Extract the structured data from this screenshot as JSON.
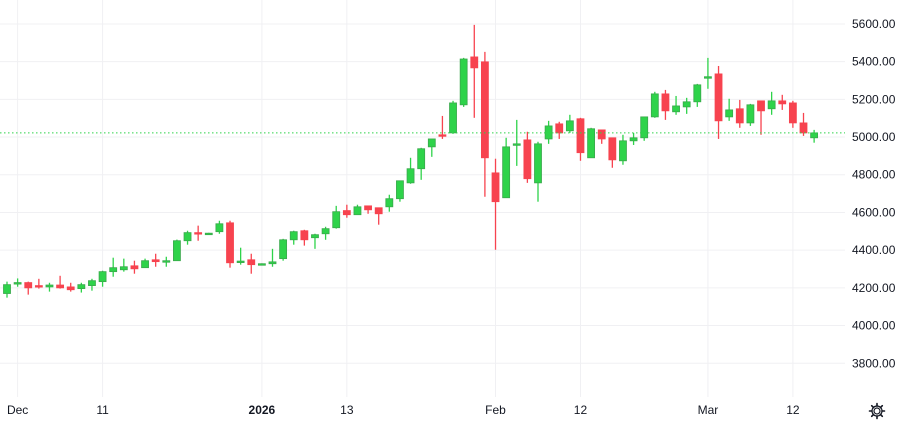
{
  "colors": {
    "up": "#2ed34a",
    "up_border": "#3aa84c",
    "down": "#f7434f",
    "grid": "#f0f0f3",
    "last_price_line": "#2ed34a",
    "text": "#131722"
  },
  "settings_icon": "gear-icon",
  "chart_data": {
    "type": "candlestick",
    "title": "",
    "xlabel": "",
    "ylabel": "",
    "ylim": [
      3621,
      5727
    ],
    "grid": true,
    "y_ticks": [
      "3800.00",
      "4000.00",
      "4200.00",
      "4400.00",
      "4600.00",
      "4800.00",
      "5000.00",
      "5200.00",
      "5400.00",
      "5600.00"
    ],
    "y_tick_values": [
      3800,
      4000,
      4200,
      4400,
      4600,
      4800,
      5000,
      5200,
      5400,
      5600
    ],
    "x_ticks": [
      {
        "label": "Dec",
        "index": 1,
        "bold": false
      },
      {
        "label": "11",
        "index": 9,
        "bold": false
      },
      {
        "label": "2026",
        "index": 24,
        "bold": true
      },
      {
        "label": "13",
        "index": 32,
        "bold": false
      },
      {
        "label": "Feb",
        "index": 46,
        "bold": false
      },
      {
        "label": "12",
        "index": 54,
        "bold": false
      },
      {
        "label": "Mar",
        "index": 66,
        "bold": false
      },
      {
        "label": "12",
        "index": 74,
        "bold": false
      }
    ],
    "last_price": 5022,
    "ohlc": [
      [
        4170,
        4233,
        4148,
        4217
      ],
      [
        4225,
        4250,
        4206,
        4228
      ],
      [
        4228,
        4233,
        4164,
        4200
      ],
      [
        4212,
        4248,
        4196,
        4210
      ],
      [
        4205,
        4227,
        4180,
        4215
      ],
      [
        4215,
        4264,
        4196,
        4200
      ],
      [
        4205,
        4227,
        4180,
        4190
      ],
      [
        4196,
        4227,
        4175,
        4217
      ],
      [
        4212,
        4248,
        4185,
        4238
      ],
      [
        4233,
        4291,
        4206,
        4286
      ],
      [
        4286,
        4360,
        4259,
        4307
      ],
      [
        4296,
        4355,
        4286,
        4312
      ],
      [
        4317,
        4344,
        4275,
        4301
      ],
      [
        4307,
        4355,
        4307,
        4344
      ],
      [
        4349,
        4381,
        4312,
        4339
      ],
      [
        4339,
        4365,
        4312,
        4344
      ],
      [
        4344,
        4456,
        4344,
        4450
      ],
      [
        4450,
        4503,
        4429,
        4493
      ],
      [
        4493,
        4530,
        4450,
        4487
      ],
      [
        4487,
        4492,
        4485,
        4490
      ],
      [
        4498,
        4556,
        4487,
        4540
      ],
      [
        4545,
        4556,
        4307,
        4333
      ],
      [
        4338,
        4413,
        4323,
        4342
      ],
      [
        4349,
        4381,
        4275,
        4323
      ],
      [
        4328,
        4330,
        4326,
        4328
      ],
      [
        4328,
        4407,
        4312,
        4338
      ],
      [
        4355,
        4460,
        4344,
        4455
      ],
      [
        4455,
        4503,
        4429,
        4498
      ],
      [
        4503,
        4508,
        4424,
        4455
      ],
      [
        4466,
        4487,
        4407,
        4482
      ],
      [
        4487,
        4524,
        4455,
        4514
      ],
      [
        4519,
        4635,
        4514,
        4604
      ],
      [
        4610,
        4641,
        4572,
        4588
      ],
      [
        4588,
        4641,
        4588,
        4630
      ],
      [
        4635,
        4635,
        4593,
        4614
      ],
      [
        4625,
        4625,
        4535,
        4593
      ],
      [
        4630,
        4694,
        4604,
        4673
      ],
      [
        4673,
        4768,
        4657,
        4768
      ],
      [
        4757,
        4890,
        4752,
        4832
      ],
      [
        4832,
        4943,
        4773,
        4938
      ],
      [
        4948,
        4990,
        4895,
        4990
      ],
      [
        5012,
        5112,
        4990,
        5006
      ],
      [
        5022,
        5192,
        5017,
        5181
      ],
      [
        5171,
        5420,
        5160,
        5414
      ],
      [
        5425,
        5595,
        5102,
        5367
      ],
      [
        5399,
        5452,
        4683,
        4890
      ],
      [
        4810,
        4885,
        4402,
        4657
      ],
      [
        4678,
        4996,
        4678,
        4948
      ],
      [
        4960,
        5091,
        4847,
        4964
      ],
      [
        4985,
        5028,
        4757,
        4779
      ],
      [
        4757,
        4975,
        4657,
        4964
      ],
      [
        4990,
        5086,
        4964,
        5059
      ],
      [
        5070,
        5081,
        4990,
        5022
      ],
      [
        5033,
        5118,
        5022,
        5086
      ],
      [
        5097,
        5102,
        4874,
        4917
      ],
      [
        4890,
        5049,
        4890,
        5044
      ],
      [
        5038,
        5038,
        4964,
        4990
      ],
      [
        4996,
        4996,
        4837,
        4879
      ],
      [
        4874,
        5012,
        4853,
        4980
      ],
      [
        4980,
        5022,
        4958,
        4996
      ],
      [
        4996,
        5107,
        4980,
        5107
      ],
      [
        5107,
        5240,
        5102,
        5229
      ],
      [
        5229,
        5250,
        5091,
        5139
      ],
      [
        5134,
        5218,
        5118,
        5165
      ],
      [
        5160,
        5208,
        5123,
        5187
      ],
      [
        5187,
        5282,
        5160,
        5277
      ],
      [
        5314,
        5420,
        5256,
        5320
      ],
      [
        5335,
        5377,
        4990,
        5086
      ],
      [
        5107,
        5203,
        5086,
        5144
      ],
      [
        5150,
        5197,
        5049,
        5075
      ],
      [
        5075,
        5176,
        5059,
        5171
      ],
      [
        5192,
        5192,
        5012,
        5139
      ],
      [
        5150,
        5240,
        5118,
        5192
      ],
      [
        5192,
        5224,
        5144,
        5176
      ],
      [
        5181,
        5192,
        5049,
        5075
      ],
      [
        5075,
        5128,
        5006,
        5022
      ],
      [
        4996,
        5038,
        4970,
        5022
      ]
    ]
  }
}
